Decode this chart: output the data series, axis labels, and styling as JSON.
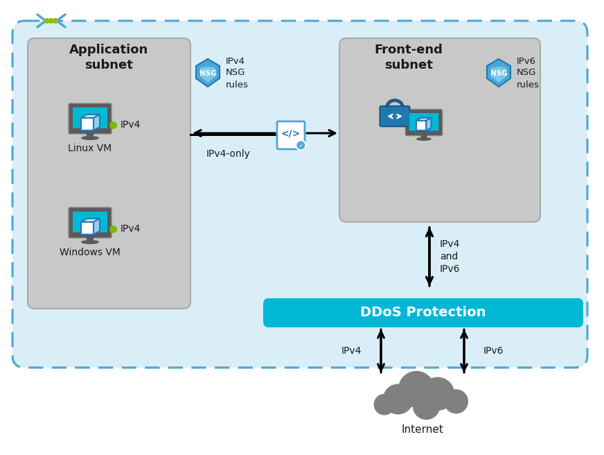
{
  "bg_outer": "#ffffff",
  "bg_main": "#daeef7",
  "bg_app_subnet": "#c8c8c8",
  "bg_frontend_subnet": "#c8c8c8",
  "bg_ddos": "#00b8d4",
  "text_ddos": "#ffffff",
  "text_dark": "#1a1a1a",
  "border_dashed": "#4da6d6",
  "cloud_gray": "#808080",
  "green_dots": "#8dc000",
  "title_app": "Application\nsubnet",
  "title_frontend": "Front-end\nsubnet",
  "label_nsg1": "IPv4\nNSG\nrules",
  "label_nsg2": "IPv6\nNSG\nrules",
  "label_ipv4only": "IPv4-only",
  "label_ipv4andipv6": "IPv4\nand\nIPv6",
  "label_linux": "Linux VM",
  "label_windows": "Windows VM",
  "label_ipv4_vm1": "IPv4",
  "label_ipv4_vm2": "IPv4",
  "label_ddos": "DDoS Protection",
  "label_ipv4_below": "IPv4",
  "label_ipv6_below": "IPv6",
  "label_internet": "Internet"
}
